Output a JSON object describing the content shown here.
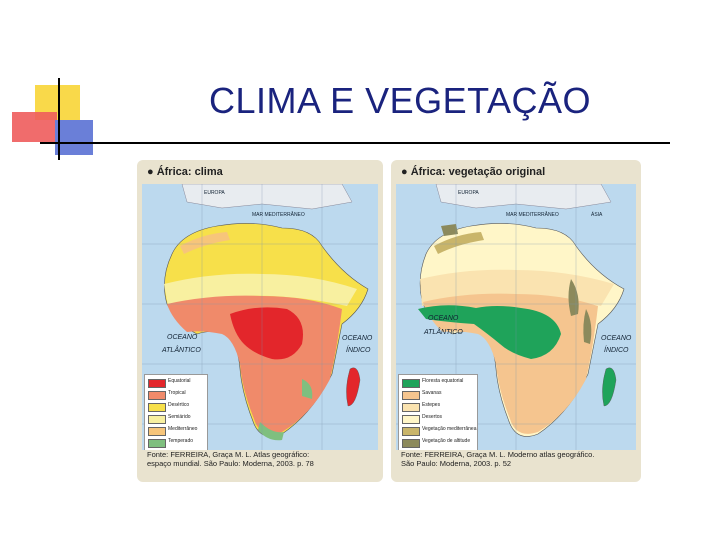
{
  "slide": {
    "title": "CLIMA E VEGETAÇÃO"
  },
  "left_panel": {
    "heading": "● África: clima",
    "map_labels": {
      "europe": "EUROPA",
      "sea": "MAR MEDITERRÂNEO",
      "ocean_atlantic_1": "OCEANO",
      "ocean_atlantic_2": "ATLÂNTICO",
      "ocean_indian_1": "OCEANO",
      "ocean_indian_2": "ÍNDICO"
    },
    "legend": [
      {
        "label": "Equatorial",
        "color": "#e3262b"
      },
      {
        "label": "Tropical",
        "color": "#f08a6a"
      },
      {
        "label": "Desértico",
        "color": "#f7e04a"
      },
      {
        "label": "Semiárido",
        "color": "#f8f0a0"
      },
      {
        "label": "Mediterrâneo",
        "color": "#f7c57a"
      },
      {
        "label": "Temperado",
        "color": "#7fbf7f"
      }
    ],
    "source_line1": "Fonte: FERREIRA, Graça M. L. Atlas geográfico:",
    "source_line2": "espaço mundial. São Paulo: Moderna, 2003. p. 78"
  },
  "right_panel": {
    "heading": "● África: vegetação original",
    "map_labels": {
      "europe": "EUROPA",
      "sea": "MAR MEDITERRÂNEO",
      "asia": "ÁSIA",
      "ocean_atlantic_1": "OCEANO",
      "ocean_atlantic_2": "ATLÂNTICO",
      "ocean_indian_1": "OCEANO",
      "ocean_indian_2": "ÍNDICO"
    },
    "legend": [
      {
        "label": "Floresta equatorial",
        "color": "#1fa35a"
      },
      {
        "label": "Savanas",
        "color": "#f5c58f"
      },
      {
        "label": "Estepes",
        "color": "#fae3b0"
      },
      {
        "label": "Desertos",
        "color": "#fff6c8"
      },
      {
        "label": "Vegetação mediterrânea",
        "color": "#c9b56a"
      },
      {
        "label": "Vegetação de altitude",
        "color": "#8c8a5c"
      }
    ],
    "source_line1": "Fonte: FERREIRA, Graça M. L. Moderno atlas geográfico.",
    "source_line2": "São Paulo: Moderna, 2003. p. 52"
  }
}
